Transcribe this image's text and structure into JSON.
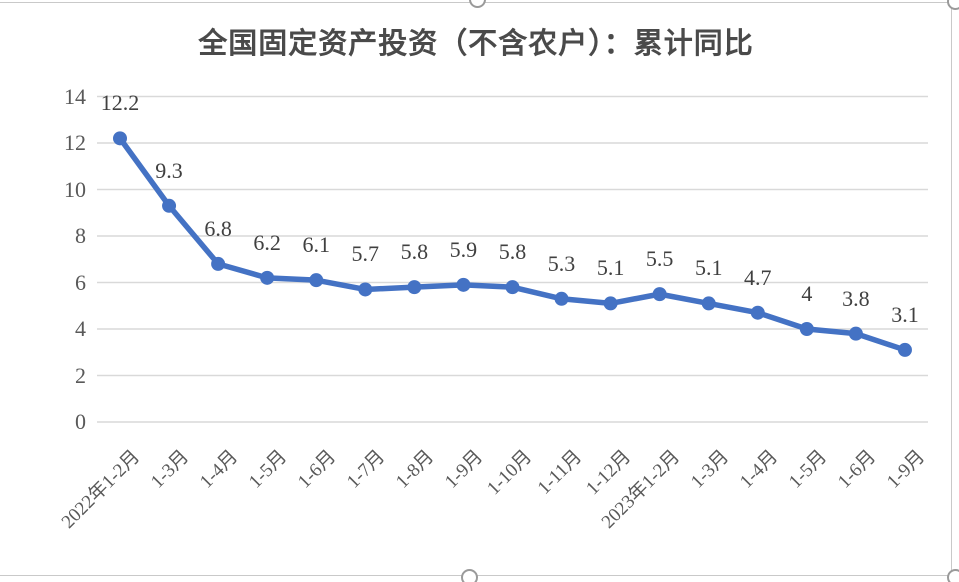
{
  "chart_data": {
    "type": "line",
    "title": "全国固定资产投资（不含农户）：累计同比",
    "categories": [
      "2022年1-2月",
      "1-3月",
      "1-4月",
      "1-5月",
      "1-6月",
      "1-7月",
      "1-8月",
      "1-9月",
      "1-10月",
      "1-11月",
      "1-12月",
      "2023年1-2月",
      "1-3月",
      "1-4月",
      "1-5月",
      "1-6月",
      "1-9月"
    ],
    "values": [
      12.2,
      9.3,
      6.8,
      6.2,
      6.1,
      5.7,
      5.8,
      5.9,
      5.8,
      5.3,
      5.1,
      5.5,
      5.1,
      4.7,
      4,
      3.8,
      3.1
    ],
    "y_ticks": [
      0,
      2,
      4,
      6,
      8,
      10,
      12,
      14
    ],
    "ylim": [
      0,
      14
    ],
    "grid": true,
    "legend": "none",
    "data_labels": "above",
    "xlabel": "",
    "ylabel": ""
  },
  "colors": {
    "series": "#4472C4",
    "gridline": "#D9D9D9",
    "axis_text": "#595959",
    "data_label_text": "#404040",
    "title_text": "#4a4a4a",
    "selection_border": "#c9c9c9"
  }
}
